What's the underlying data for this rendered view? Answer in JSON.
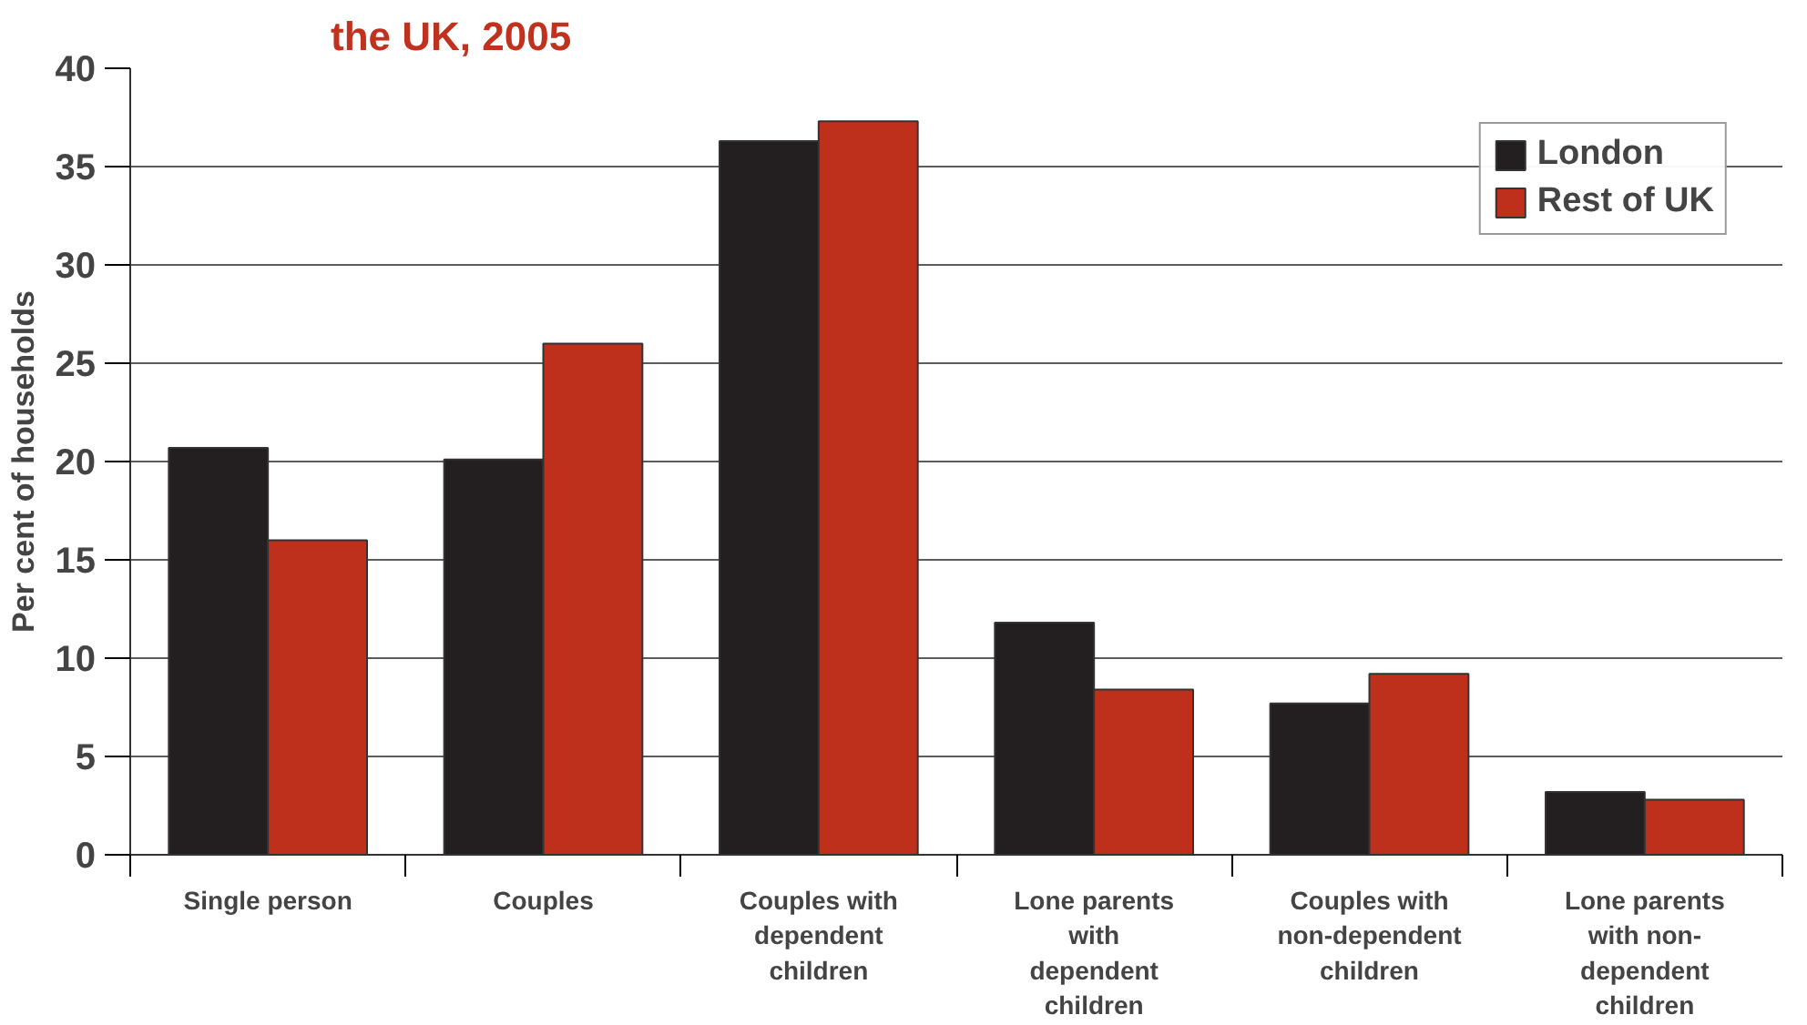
{
  "chart_data": {
    "type": "bar",
    "title": "the UK, 2005",
    "ylabel": "Per cent of households",
    "categories": [
      "Single person",
      "Couples",
      "Couples with\ndependent\nchildren",
      "Lone parents\nwith\ndependent\nchildren",
      "Couples with\nnon-dependent\nchildren",
      "Lone parents\nwith non-\ndependent\nchildren"
    ],
    "series": [
      {
        "name": "London",
        "color": "#231f20",
        "values": [
          20.7,
          20.1,
          36.3,
          11.8,
          7.7,
          3.2
        ]
      },
      {
        "name": "Rest of UK",
        "color": "#bf301c",
        "values": [
          16.0,
          26.0,
          37.3,
          8.4,
          9.2,
          2.8
        ]
      }
    ],
    "ylim": [
      0,
      40
    ],
    "yticks": [
      0,
      5,
      10,
      15,
      20,
      25,
      30,
      35,
      40
    ],
    "grid": "y",
    "legend": "top right"
  }
}
